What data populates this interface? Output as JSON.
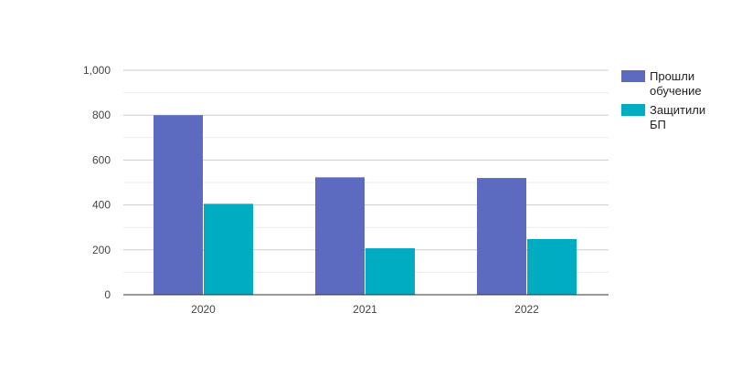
{
  "chart_data": {
    "type": "bar",
    "categories": [
      "2020",
      "2021",
      "2022"
    ],
    "series": [
      {
        "name": "Прошли обучение",
        "name_lines": [
          "Прошли",
          "обучение"
        ],
        "color": "#5c6bc0",
        "values": [
          800,
          523,
          520
        ]
      },
      {
        "name": "Защитили БП",
        "name_lines": [
          "Защитили",
          "БП"
        ],
        "color": "#00acc1",
        "values": [
          405,
          207,
          248
        ]
      }
    ],
    "title": "",
    "xlabel": "",
    "ylabel": "",
    "ylim": [
      0,
      1000
    ],
    "yticks": [
      0,
      200,
      400,
      600,
      800,
      1000
    ],
    "ytick_labels": [
      "0",
      "200",
      "400",
      "600",
      "800",
      "1,000"
    ],
    "grid": true,
    "minor_grid": true,
    "legend": "right"
  }
}
